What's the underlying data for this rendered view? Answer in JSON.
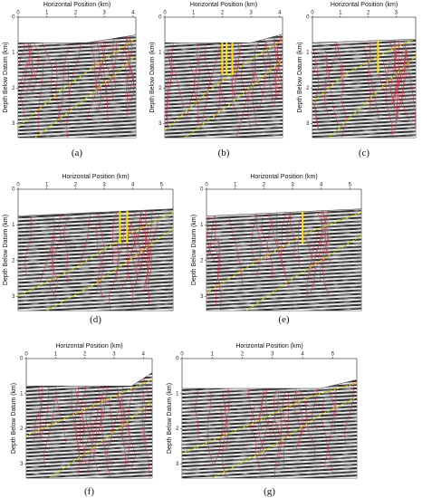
{
  "axis": {
    "x_label": "Horizontal Position (km)",
    "y_label": "Depth Below Datum (km)"
  },
  "colors": {
    "background": "#ffffff",
    "seismic_light": "#e8e8e8",
    "seismic_dark": "#2a2a2a",
    "fault_lines": "#c8324a",
    "horizon_lines": "#c8d400",
    "wells": "#ffe100"
  },
  "panels": [
    {
      "caption": "(a)",
      "x_ticks": [
        "0",
        "1",
        "2",
        "3",
        "4"
      ],
      "y_ticks": [
        "0",
        "1",
        "2",
        "3"
      ],
      "x_max": 4.1,
      "y_max": 3.4,
      "surface": [
        [
          0,
          0.72
        ],
        [
          2.4,
          0.72
        ],
        [
          4.1,
          0.5
        ]
      ],
      "horizons": [
        [
          [
            0,
            3.1
          ],
          [
            1.6,
            2.0
          ],
          [
            3.0,
            1.2
          ],
          [
            4.1,
            0.6
          ]
        ],
        [
          [
            0.6,
            3.4
          ],
          [
            2.2,
            2.4
          ],
          [
            3.4,
            1.6
          ],
          [
            4.1,
            1.1
          ]
        ]
      ],
      "wells": []
    },
    {
      "caption": "(b)",
      "x_ticks": [
        "0",
        "1",
        "2",
        "3",
        "4"
      ],
      "y_ticks": [
        "0",
        "1",
        "2",
        "3"
      ],
      "x_max": 4.1,
      "y_max": 3.4,
      "surface": [
        [
          0,
          0.72
        ],
        [
          3.0,
          0.72
        ],
        [
          4.1,
          0.48
        ]
      ],
      "horizons": [
        [
          [
            0,
            3.2
          ],
          [
            1.5,
            2.1
          ],
          [
            3.0,
            1.2
          ],
          [
            4.1,
            0.65
          ]
        ],
        [
          [
            0.7,
            3.4
          ],
          [
            2.2,
            2.5
          ],
          [
            3.4,
            1.7
          ],
          [
            4.1,
            1.2
          ]
        ]
      ],
      "wells": [
        2.0,
        2.15,
        2.35
      ]
    },
    {
      "caption": "(c)",
      "x_ticks": [
        "0",
        "1",
        "2",
        "3"
      ],
      "y_ticks": [
        "0",
        "1",
        "2",
        "3"
      ],
      "x_max": 3.7,
      "y_max": 3.4,
      "surface": [
        [
          0,
          0.72
        ],
        [
          3.7,
          0.62
        ]
      ],
      "horizons": [
        [
          [
            0,
            2.4
          ],
          [
            1.2,
            1.6
          ],
          [
            2.6,
            1.0
          ],
          [
            3.7,
            0.6
          ]
        ],
        [
          [
            0.6,
            3.4
          ],
          [
            1.8,
            2.5
          ],
          [
            3.0,
            1.6
          ],
          [
            3.7,
            1.1
          ]
        ]
      ],
      "wells": [
        2.35
      ]
    },
    {
      "caption": "(d)",
      "x_ticks": [
        "0",
        "1",
        "2",
        "3",
        "4",
        "5"
      ],
      "y_ticks": [
        "0",
        "1",
        "2",
        "3"
      ],
      "x_max": 5.4,
      "y_max": 3.4,
      "surface": [
        [
          0,
          0.75
        ],
        [
          5.4,
          0.55
        ]
      ],
      "horizons": [
        [
          [
            0,
            3.0
          ],
          [
            2.0,
            2.2
          ],
          [
            3.8,
            1.3
          ],
          [
            5.4,
            0.65
          ]
        ],
        [
          [
            1.0,
            3.4
          ],
          [
            2.8,
            2.6
          ],
          [
            4.2,
            1.8
          ],
          [
            5.4,
            1.1
          ]
        ]
      ],
      "wells": [
        3.55,
        3.8
      ]
    },
    {
      "caption": "(e)",
      "x_ticks": [
        "0",
        "1",
        "2",
        "3",
        "4",
        "5"
      ],
      "y_ticks": [
        "0",
        "1",
        "2",
        "3"
      ],
      "x_max": 5.4,
      "y_max": 3.4,
      "surface": [
        [
          0,
          0.75
        ],
        [
          5.4,
          0.55
        ]
      ],
      "horizons": [
        [
          [
            0,
            2.9
          ],
          [
            1.8,
            2.0
          ],
          [
            3.6,
            1.2
          ],
          [
            5.4,
            0.65
          ]
        ],
        [
          [
            1.4,
            3.4
          ],
          [
            3.0,
            2.5
          ],
          [
            4.4,
            1.8
          ],
          [
            5.4,
            1.3
          ]
        ]
      ],
      "wells": [
        3.35
      ]
    },
    {
      "caption": "(f)",
      "x_ticks": [
        "0",
        "1",
        "2",
        "3",
        "4"
      ],
      "y_ticks": [
        "0",
        "1",
        "2",
        "3"
      ],
      "x_max": 4.3,
      "y_max": 3.4,
      "surface": [
        [
          0,
          0.78
        ],
        [
          3.6,
          0.78
        ],
        [
          4.3,
          0.4
        ]
      ],
      "horizons": [
        [
          [
            0,
            2.2
          ],
          [
            1.6,
            1.6
          ],
          [
            3.2,
            1.0
          ],
          [
            4.3,
            0.6
          ]
        ],
        [
          [
            0.8,
            3.4
          ],
          [
            2.2,
            2.6
          ],
          [
            3.6,
            1.7
          ],
          [
            4.3,
            1.2
          ]
        ]
      ],
      "wells": []
    },
    {
      "caption": "(g)",
      "x_ticks": [
        "0",
        "1",
        "2",
        "3",
        "4",
        "5"
      ],
      "y_ticks": [
        "0",
        "1",
        "2",
        "3"
      ],
      "x_max": 5.8,
      "y_max": 3.4,
      "surface": [
        [
          0,
          0.85
        ],
        [
          4.6,
          0.85
        ],
        [
          5.8,
          0.6
        ]
      ],
      "horizons": [
        [
          [
            0,
            2.7
          ],
          [
            2.2,
            1.9
          ],
          [
            4.2,
            1.1
          ],
          [
            5.8,
            0.7
          ]
        ],
        [
          [
            1.0,
            3.4
          ],
          [
            2.8,
            2.6
          ],
          [
            4.6,
            1.6
          ],
          [
            5.8,
            1.1
          ]
        ]
      ],
      "wells": []
    }
  ]
}
